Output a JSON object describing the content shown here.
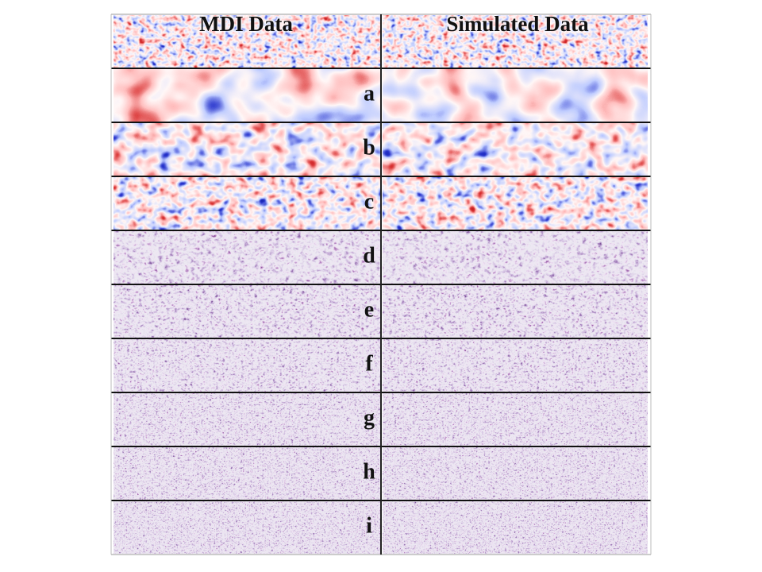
{
  "columns": [
    "MDI Data",
    "Simulated Data"
  ],
  "row_labels": [
    "a",
    "b",
    "c",
    "d",
    "e",
    "f",
    "g",
    "h",
    "i"
  ]
}
